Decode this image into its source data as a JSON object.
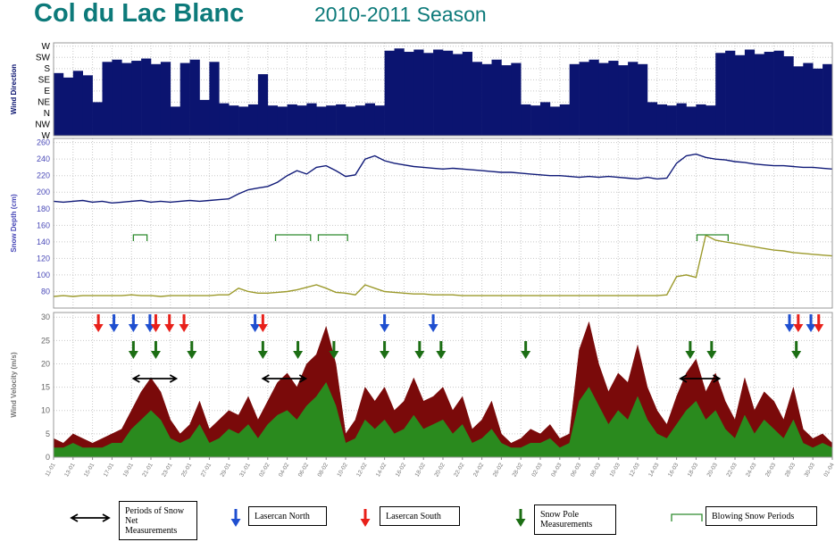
{
  "title": "Col du Lac Blanc",
  "subtitle": "2010-2011 Season",
  "chart_data": [
    {
      "type": "bar",
      "y_label": "Wind Direction",
      "x": [
        0,
        1,
        2,
        3,
        4,
        5,
        6,
        7,
        8,
        9,
        10,
        11,
        12,
        13,
        14,
        15,
        16,
        17,
        18,
        19,
        20,
        21,
        22,
        23,
        24,
        25,
        26,
        27,
        28,
        29,
        30,
        31,
        32,
        33,
        34,
        35,
        36,
        37,
        38,
        39,
        40,
        41,
        42,
        43,
        44,
        45,
        46,
        47,
        48,
        49,
        50,
        51,
        52,
        53,
        54,
        55,
        56,
        57,
        58,
        59,
        60,
        61,
        62,
        63,
        64,
        65,
        66,
        67,
        68,
        69,
        70,
        71,
        72,
        73,
        74,
        75,
        76,
        77,
        78,
        79,
        80
      ],
      "xlim": [
        0,
        80
      ],
      "ylim": [
        0,
        8.3
      ],
      "yticks": [
        {
          "value": 0,
          "label": "W"
        },
        {
          "value": 1,
          "label": "NW"
        },
        {
          "value": 2,
          "label": "N"
        },
        {
          "value": 3,
          "label": "NE"
        },
        {
          "value": 4,
          "label": "E"
        },
        {
          "value": 5,
          "label": "SE"
        },
        {
          "value": 6,
          "label": "S"
        },
        {
          "value": 7,
          "label": "SW"
        },
        {
          "value": 8,
          "label": "W"
        }
      ],
      "grid": true,
      "series": [
        {
          "color": "#0b1470",
          "values": [
            5.6,
            5.2,
            5.8,
            5.4,
            3.0,
            6.6,
            6.8,
            6.5,
            6.7,
            6.9,
            6.4,
            6.6,
            2.6,
            6.5,
            6.8,
            3.2,
            6.6,
            2.9,
            2.7,
            2.6,
            2.8,
            5.5,
            2.7,
            2.6,
            2.8,
            2.7,
            2.9,
            2.6,
            2.7,
            2.8,
            2.6,
            2.7,
            2.9,
            2.7,
            7.6,
            7.8,
            7.5,
            7.7,
            7.4,
            7.7,
            7.6,
            7.3,
            7.5,
            6.6,
            6.4,
            6.8,
            6.3,
            6.5,
            2.8,
            2.7,
            3.0,
            2.6,
            2.8,
            6.4,
            6.6,
            6.8,
            6.5,
            6.7,
            6.3,
            6.6,
            6.4,
            3.0,
            2.8,
            2.7,
            2.9,
            2.6,
            2.8,
            2.7,
            7.4,
            7.6,
            7.2,
            7.7,
            7.3,
            7.5,
            7.6,
            7.1,
            6.2,
            6.5,
            6.0,
            6.4,
            6.3
          ]
        }
      ]
    },
    {
      "type": "line",
      "y_label": "Snow Depth (cm)",
      "x": [
        0,
        1,
        2,
        3,
        4,
        5,
        6,
        7,
        8,
        9,
        10,
        11,
        12,
        13,
        14,
        15,
        16,
        17,
        18,
        19,
        20,
        21,
        22,
        23,
        24,
        25,
        26,
        27,
        28,
        29,
        30,
        31,
        32,
        33,
        34,
        35,
        36,
        37,
        38,
        39,
        40,
        41,
        42,
        43,
        44,
        45,
        46,
        47,
        48,
        49,
        50,
        51,
        52,
        53,
        54,
        55,
        56,
        57,
        58,
        59,
        60,
        61,
        62,
        63,
        64,
        65,
        66,
        67,
        68,
        69,
        70,
        71,
        72,
        73,
        74,
        75,
        76,
        77,
        78,
        79,
        80
      ],
      "xlim": [
        0,
        80
      ],
      "ylim": [
        60,
        265
      ],
      "yticks": [
        80,
        100,
        120,
        140,
        160,
        180,
        200,
        220,
        240,
        260
      ],
      "grid": true,
      "series": [
        {
          "color": "#101a78",
          "values": [
            189,
            188,
            189,
            190,
            188,
            189,
            187,
            188,
            189,
            190,
            188,
            189,
            188,
            189,
            190,
            189,
            190,
            191,
            192,
            198,
            203,
            205,
            207,
            212,
            220,
            226,
            222,
            230,
            232,
            226,
            219,
            221,
            240,
            244,
            238,
            235,
            233,
            231,
            230,
            229,
            228,
            229,
            228,
            227,
            226,
            225,
            224,
            224,
            223,
            222,
            221,
            220,
            220,
            219,
            218,
            219,
            218,
            219,
            218,
            217,
            216,
            218,
            216,
            217,
            235,
            244,
            246,
            242,
            240,
            239,
            237,
            236,
            234,
            233,
            232,
            232,
            231,
            230,
            230,
            229,
            228
          ]
        },
        {
          "color": "#9c9a2c",
          "values": [
            74,
            75,
            74,
            75,
            75,
            75,
            75,
            75,
            76,
            75,
            75,
            74,
            75,
            75,
            75,
            75,
            75,
            76,
            76,
            84,
            80,
            78,
            78,
            79,
            80,
            82,
            85,
            88,
            84,
            79,
            78,
            76,
            88,
            84,
            80,
            79,
            78,
            77,
            77,
            76,
            76,
            76,
            75,
            75,
            75,
            75,
            75,
            75,
            75,
            75,
            75,
            75,
            75,
            75,
            75,
            75,
            75,
            75,
            75,
            75,
            75,
            75,
            75,
            76,
            98,
            100,
            97,
            148,
            142,
            140,
            138,
            136,
            134,
            132,
            130,
            129,
            127,
            126,
            125,
            124,
            123
          ]
        }
      ],
      "periods": {
        "name": "Blowing Snow Periods",
        "color": "#2e8b2e",
        "ranges": [
          [
            8.2,
            9.6
          ],
          [
            22.8,
            26.4
          ],
          [
            27.2,
            30.2
          ],
          [
            66.1,
            69.3
          ]
        ]
      }
    },
    {
      "type": "area",
      "y_label": "Wind Velocity (m/s)",
      "x": [
        0,
        1,
        2,
        3,
        4,
        5,
        6,
        7,
        8,
        9,
        10,
        11,
        12,
        13,
        14,
        15,
        16,
        17,
        18,
        19,
        20,
        21,
        22,
        23,
        24,
        25,
        26,
        27,
        28,
        29,
        30,
        31,
        32,
        33,
        34,
        35,
        36,
        37,
        38,
        39,
        40,
        41,
        42,
        43,
        44,
        45,
        46,
        47,
        48,
        49,
        50,
        51,
        52,
        53,
        54,
        55,
        56,
        57,
        58,
        59,
        60,
        61,
        62,
        63,
        64,
        65,
        66,
        67,
        68,
        69,
        70,
        71,
        72,
        73,
        74,
        75,
        76,
        77,
        78,
        79,
        80
      ],
      "xlim": [
        0,
        80
      ],
      "ylim": [
        0,
        31
      ],
      "yticks": [
        0,
        5,
        10,
        15,
        20,
        25,
        30
      ],
      "xticks": [
        {
          "value": 0,
          "label": "11-01"
        },
        {
          "value": 2,
          "label": "13-01"
        },
        {
          "value": 4,
          "label": "15-01"
        },
        {
          "value": 6,
          "label": "17-01"
        },
        {
          "value": 8,
          "label": "19-01"
        },
        {
          "value": 10,
          "label": "21-01"
        },
        {
          "value": 12,
          "label": "23-01"
        },
        {
          "value": 14,
          "label": "25-01"
        },
        {
          "value": 16,
          "label": "27-01"
        },
        {
          "value": 18,
          "label": "29-01"
        },
        {
          "value": 20,
          "label": "31-01"
        },
        {
          "value": 22,
          "label": "02-02"
        },
        {
          "value": 24,
          "label": "04-02"
        },
        {
          "value": 26,
          "label": "06-02"
        },
        {
          "value": 28,
          "label": "08-02"
        },
        {
          "value": 30,
          "label": "10-02"
        },
        {
          "value": 32,
          "label": "12-02"
        },
        {
          "value": 34,
          "label": "14-02"
        },
        {
          "value": 36,
          "label": "16-02"
        },
        {
          "value": 38,
          "label": "18-02"
        },
        {
          "value": 40,
          "label": "20-02"
        },
        {
          "value": 42,
          "label": "22-02"
        },
        {
          "value": 44,
          "label": "24-02"
        },
        {
          "value": 46,
          "label": "26-02"
        },
        {
          "value": 48,
          "label": "28-02"
        },
        {
          "value": 50,
          "label": "02-03"
        },
        {
          "value": 52,
          "label": "04-03"
        },
        {
          "value": 54,
          "label": "06-03"
        },
        {
          "value": 56,
          "label": "08-03"
        },
        {
          "value": 58,
          "label": "10-03"
        },
        {
          "value": 60,
          "label": "12-03"
        },
        {
          "value": 62,
          "label": "14-03"
        },
        {
          "value": 64,
          "label": "16-03"
        },
        {
          "value": 66,
          "label": "18-03"
        },
        {
          "value": 68,
          "label": "20-03"
        },
        {
          "value": 70,
          "label": "22-03"
        },
        {
          "value": 72,
          "label": "24-03"
        },
        {
          "value": 74,
          "label": "26-03"
        },
        {
          "value": 76,
          "label": "28-03"
        },
        {
          "value": 78,
          "label": "30-03"
        },
        {
          "value": 80,
          "label": "01-04"
        }
      ],
      "grid": true,
      "series": [
        {
          "color": "#7a0a0a",
          "values": [
            4,
            3,
            5,
            4,
            3,
            4,
            5,
            6,
            10,
            14,
            17,
            14,
            8,
            5,
            7,
            12,
            6,
            8,
            10,
            9,
            13,
            8,
            12,
            16,
            18,
            15,
            20,
            22,
            28,
            20,
            5,
            8,
            15,
            12,
            15,
            10,
            12,
            17,
            12,
            13,
            15,
            10,
            13,
            6,
            8,
            12,
            5,
            3,
            4,
            6,
            5,
            7,
            4,
            5,
            23,
            29,
            20,
            14,
            18,
            16,
            24,
            15,
            10,
            7,
            13,
            18,
            21,
            14,
            18,
            12,
            8,
            17,
            10,
            14,
            12,
            8,
            15,
            6,
            4,
            5,
            3
          ]
        },
        {
          "color": "#2a8a1e",
          "values": [
            2,
            2,
            3,
            2,
            2,
            2,
            3,
            3,
            6,
            8,
            10,
            8,
            4,
            3,
            4,
            7,
            3,
            4,
            6,
            5,
            7,
            4,
            7,
            9,
            10,
            8,
            11,
            13,
            16,
            11,
            3,
            4,
            8,
            6,
            8,
            5,
            6,
            9,
            6,
            7,
            8,
            5,
            7,
            3,
            4,
            6,
            3,
            2,
            2,
            3,
            3,
            4,
            2,
            3,
            12,
            15,
            11,
            7,
            10,
            8,
            13,
            8,
            5,
            4,
            7,
            10,
            12,
            8,
            10,
            6,
            4,
            9,
            5,
            8,
            6,
            4,
            8,
            3,
            2,
            3,
            2
          ]
        }
      ],
      "markers": [
        {
          "name": "Lasercan North",
          "color": "#1f4fd0",
          "x": [
            6.2,
            8.2,
            9.9,
            20.7,
            34,
            39,
            75.6,
            77.8
          ]
        },
        {
          "name": "Lasercan South",
          "color": "#e8201a",
          "x": [
            4.6,
            10.5,
            11.9,
            13.4,
            21.5,
            76.5,
            78.6
          ]
        },
        {
          "name": "Snow Pole Measurements",
          "color": "#1c6e14",
          "x": [
            8.2,
            10.5,
            14.2,
            21.5,
            25.1,
            28.8,
            34,
            37.6,
            39.8,
            48.5,
            65.4,
            67.6,
            76.3
          ]
        }
      ],
      "ranges": {
        "name": "Periods of Snow Net Measurements",
        "color": "#000000",
        "ranges": [
          [
            8.2,
            12.6
          ],
          [
            21.5,
            25.9
          ],
          [
            64.4,
            68.4
          ]
        ]
      }
    }
  ]
}
